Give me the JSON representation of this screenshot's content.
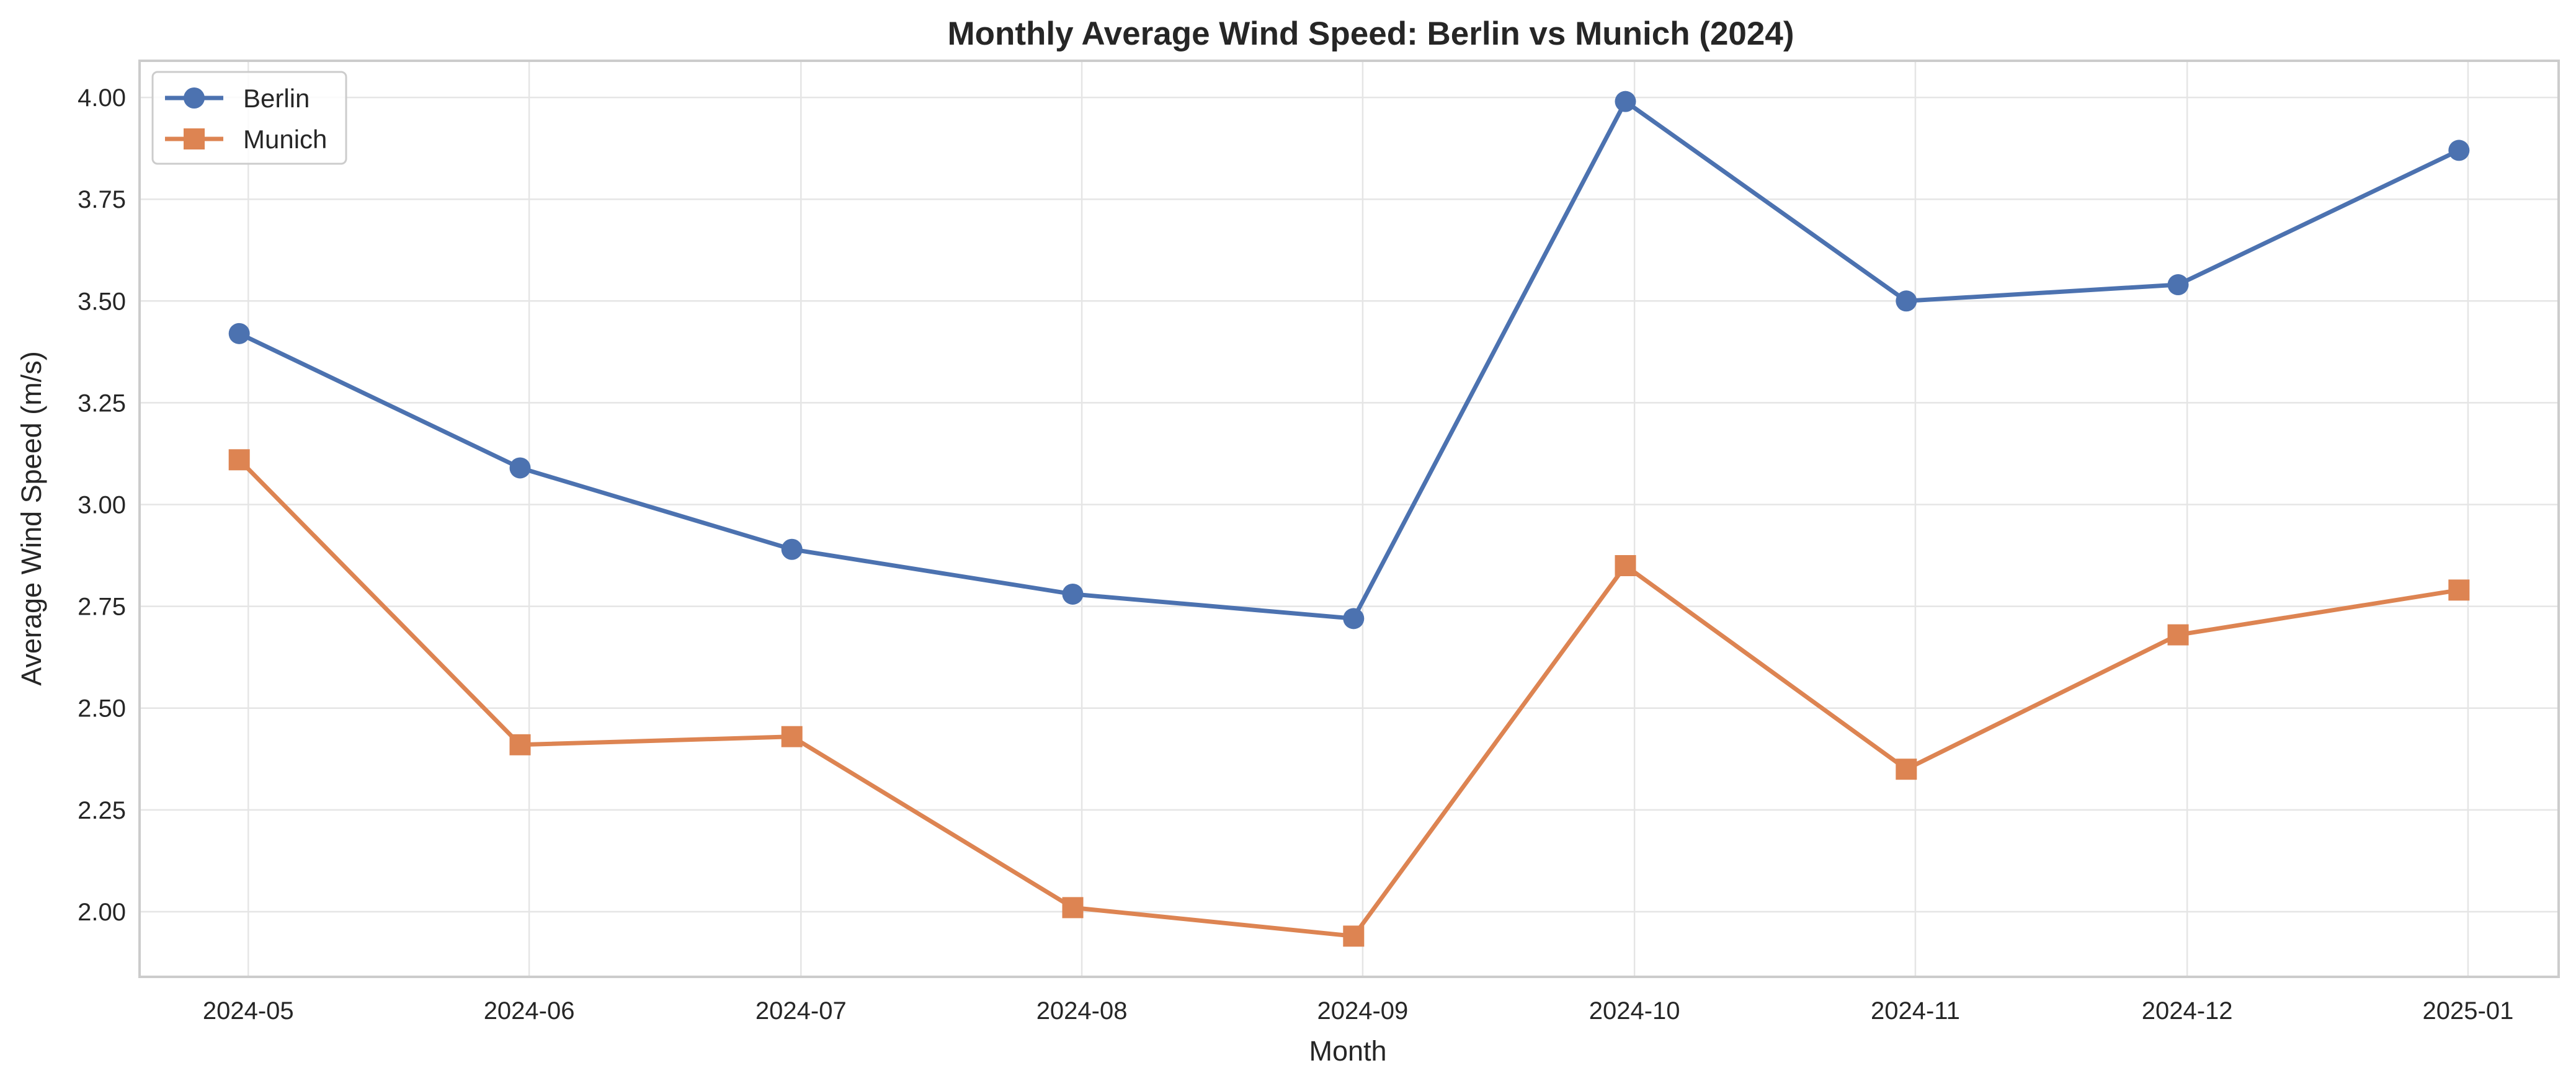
{
  "chart_data": {
    "type": "line",
    "title": "Monthly Average Wind Speed: Berlin vs Munich (2024)",
    "xlabel": "Month",
    "ylabel": "Average Wind Speed (m/s)",
    "x_ticks": [
      "2024-05",
      "2024-06",
      "2024-07",
      "2024-08",
      "2024-09",
      "2024-10",
      "2024-11",
      "2024-12",
      "2025-01"
    ],
    "y_ticks": [
      "2.00",
      "2.25",
      "2.50",
      "2.75",
      "3.00",
      "3.25",
      "3.50",
      "3.75",
      "4.00"
    ],
    "ylim": [
      1.84,
      4.09
    ],
    "xlim": [
      "2024-04-19",
      "2025-01-11"
    ],
    "grid": true,
    "legend_position": "top-left",
    "x": [
      "2024-04-30",
      "2024-05-31",
      "2024-06-30",
      "2024-07-31",
      "2024-08-31",
      "2024-09-30",
      "2024-10-31",
      "2024-11-30",
      "2024-12-31"
    ],
    "series": [
      {
        "name": "Berlin",
        "color": "#4c72b0",
        "marker": "circle",
        "values": [
          3.42,
          3.09,
          2.89,
          2.78,
          2.72,
          3.99,
          3.5,
          3.54,
          3.87
        ]
      },
      {
        "name": "Munich",
        "color": "#dd8452",
        "marker": "square",
        "values": [
          3.11,
          2.41,
          2.43,
          2.01,
          1.94,
          2.85,
          2.35,
          2.68,
          2.79
        ]
      }
    ]
  }
}
